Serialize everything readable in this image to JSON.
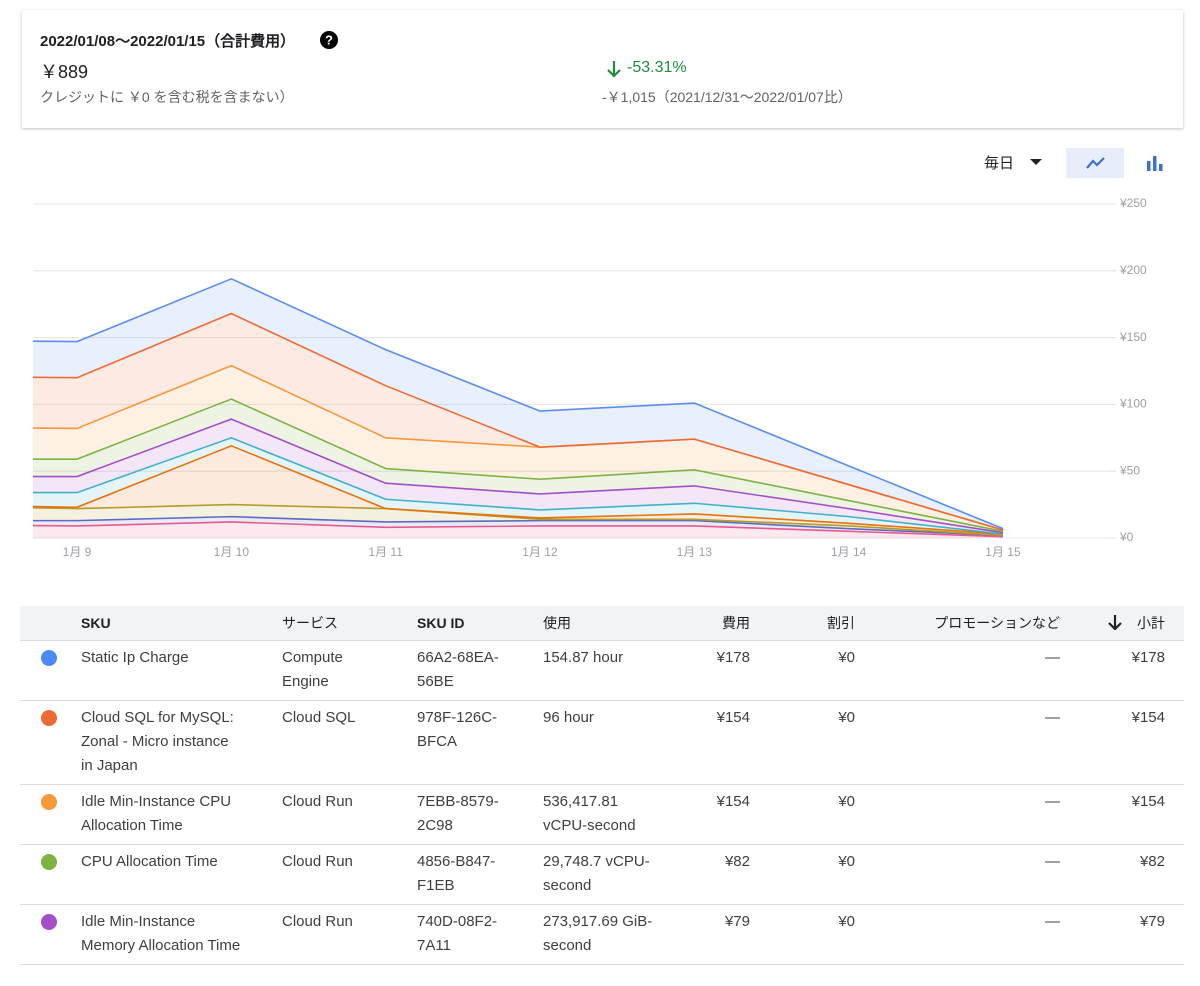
{
  "summary": {
    "title": "2022/01/08〜2022/01/15（合計費用）",
    "total": "￥889",
    "total_note": "クレジットに ￥0 を含む税を含まない）",
    "change": "-53.31%",
    "change_note": "-￥1,015（2021/12/31〜2022/01/07比）"
  },
  "controls": {
    "period": "毎日"
  },
  "chart_data": {
    "type": "stacked_area",
    "categories": [
      null,
      "1月 9",
      "1月 10",
      "1月 11",
      "1月 12",
      "1月 13",
      "1月 14",
      "1月 15"
    ],
    "ylim": [
      0,
      250
    ],
    "yticks": [
      {
        "value": 0,
        "label": "¥0"
      },
      {
        "value": 50,
        "label": "¥50"
      },
      {
        "value": 100,
        "label": "¥100"
      },
      {
        "value": 150,
        "label": "¥150"
      },
      {
        "value": 200,
        "label": "¥200"
      },
      {
        "value": 250,
        "label": "¥250"
      }
    ],
    "grid": true,
    "series": [
      {
        "color": "#e8598f",
        "values": [
          10,
          9,
          12,
          8,
          9,
          9,
          5,
          1
        ]
      },
      {
        "color": "#5c6bc0",
        "values": [
          3,
          4,
          4,
          4,
          4,
          4,
          2,
          1
        ]
      },
      {
        "color": "#b59b2a",
        "values": [
          11,
          9,
          9,
          10,
          1,
          1,
          2,
          0
        ]
      },
      {
        "color": "#e8710a",
        "values": [
          1,
          1,
          44,
          0,
          1,
          4,
          2,
          1
        ]
      },
      {
        "color": "#3fb1c8",
        "values": [
          9,
          11,
          6,
          7,
          6,
          8,
          5,
          0
        ]
      },
      {
        "color": "#a54ec6",
        "values": [
          12,
          12,
          14,
          12,
          12,
          13,
          6,
          1
        ]
      },
      {
        "color": "#7cb342",
        "values": [
          13,
          13,
          15,
          11,
          11,
          12,
          6,
          1
        ]
      },
      {
        "color": "#f5993a",
        "values": [
          24,
          23,
          25,
          23,
          24,
          23,
          12,
          1
        ]
      },
      {
        "color": "#ee6a35",
        "values": [
          38,
          38,
          39,
          39,
          0,
          0,
          0,
          0
        ]
      },
      {
        "color": "#5b8def",
        "values": [
          27,
          27,
          26,
          27,
          27,
          27,
          14,
          1
        ]
      }
    ]
  },
  "table": {
    "columns": [
      "SKU",
      "サービス",
      "SKU ID",
      "使用",
      "費用",
      "割引",
      "プロモーションなど",
      "小計"
    ],
    "rows": [
      {
        "color": "#4c8bf5",
        "sku": "Static Ip Charge",
        "service": "Compute Engine",
        "sku_id": "66A2-68EA-56BE",
        "usage": "154.87 hour",
        "cost": "¥178",
        "discount": "¥0",
        "promotion": "—",
        "subtotal": "¥178"
      },
      {
        "color": "#ee6a35",
        "sku": "Cloud SQL for MySQL: Zonal - Micro instance in Japan",
        "service": "Cloud SQL",
        "sku_id": "978F-126C-BFCA",
        "usage": "96 hour",
        "cost": "¥154",
        "discount": "¥0",
        "promotion": "—",
        "subtotal": "¥154"
      },
      {
        "color": "#f5993a",
        "sku": "Idle Min-Instance CPU Allocation Time",
        "service": "Cloud Run",
        "sku_id": "7EBB-8579-2C98",
        "usage": "536,417.81 vCPU-second",
        "cost": "¥154",
        "discount": "¥0",
        "promotion": "—",
        "subtotal": "¥154"
      },
      {
        "color": "#7cb342",
        "sku": "CPU Allocation Time",
        "service": "Cloud Run",
        "sku_id": "4856-B847-F1EB",
        "usage": "29,748.7 vCPU-second",
        "cost": "¥82",
        "discount": "¥0",
        "promotion": "—",
        "subtotal": "¥82"
      },
      {
        "color": "#a54ec6",
        "sku": "Idle Min-Instance Memory Allocation Time",
        "service": "Cloud Run",
        "sku_id": "740D-08F2-7A11",
        "usage": "273,917.69 GiB-second",
        "cost": "¥79",
        "discount": "¥0",
        "promotion": "—",
        "subtotal": "¥79"
      }
    ]
  }
}
